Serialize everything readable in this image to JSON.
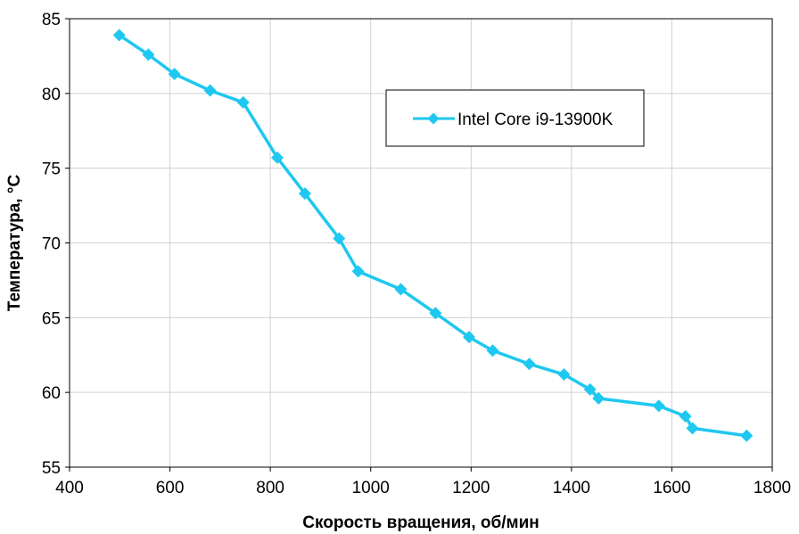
{
  "chart_data": {
    "type": "line",
    "title": "",
    "xlabel": "Скорость вращения, об/мин",
    "ylabel": "Температура, °С",
    "xlim": [
      400,
      1800
    ],
    "ylim": [
      55,
      85
    ],
    "xticks": [
      400,
      600,
      800,
      1000,
      1200,
      1400,
      1600,
      1800
    ],
    "yticks": [
      55,
      60,
      65,
      70,
      75,
      80,
      85
    ],
    "grid": true,
    "legend_position": "top-right",
    "series": [
      {
        "name": "Intel Core i9-13900K",
        "color": "#1ec8f0",
        "marker": "diamond",
        "x": [
          499,
          557,
          609,
          680,
          746,
          814,
          869,
          937,
          975,
          1060,
          1129,
          1196,
          1243,
          1316,
          1385,
          1437,
          1454,
          1574,
          1627,
          1641,
          1749
        ],
        "y": [
          83.9,
          82.6,
          81.3,
          80.2,
          79.4,
          75.7,
          73.3,
          70.3,
          68.1,
          66.9,
          65.3,
          63.7,
          62.8,
          61.9,
          61.2,
          60.2,
          59.6,
          59.1,
          58.4,
          57.6,
          57.1
        ]
      }
    ]
  }
}
